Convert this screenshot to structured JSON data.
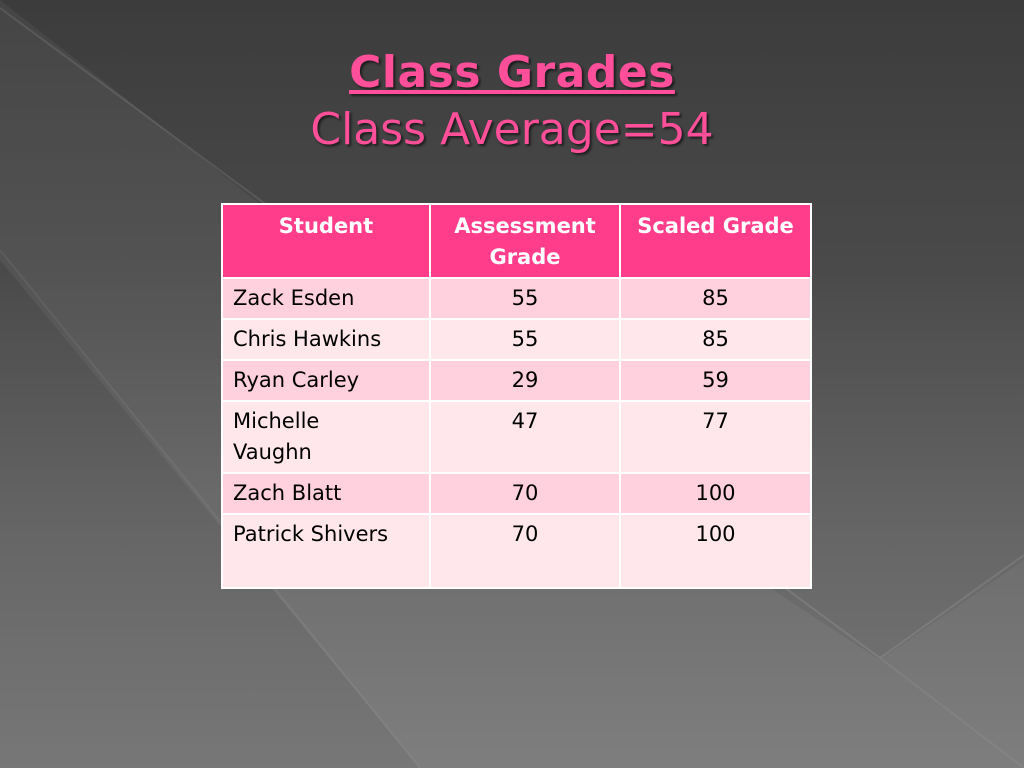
{
  "title": "Class Grades",
  "subtitle": "Class Average=54",
  "colors": {
    "accent": "#ff4f9a",
    "header_bg": "#ff3d8b",
    "row_odd": "#ffd0dd",
    "row_even": "#ffe7ec"
  },
  "table": {
    "headers": [
      "Student",
      "Assessment Grade",
      "Scaled Grade"
    ],
    "rows": [
      {
        "student": "Zack Esden",
        "assessment": "55",
        "scaled": "85"
      },
      {
        "student": "Chris Hawkins",
        "assessment": "55",
        "scaled": "85"
      },
      {
        "student": "Ryan Carley",
        "assessment": "29",
        "scaled": "59"
      },
      {
        "student": "Michelle Vaughn",
        "assessment": "47",
        "scaled": "77"
      },
      {
        "student": "Zach Blatt",
        "assessment": "70",
        "scaled": "100"
      },
      {
        "student": "Patrick Shivers",
        "assessment": "70",
        "scaled": "100"
      }
    ]
  }
}
